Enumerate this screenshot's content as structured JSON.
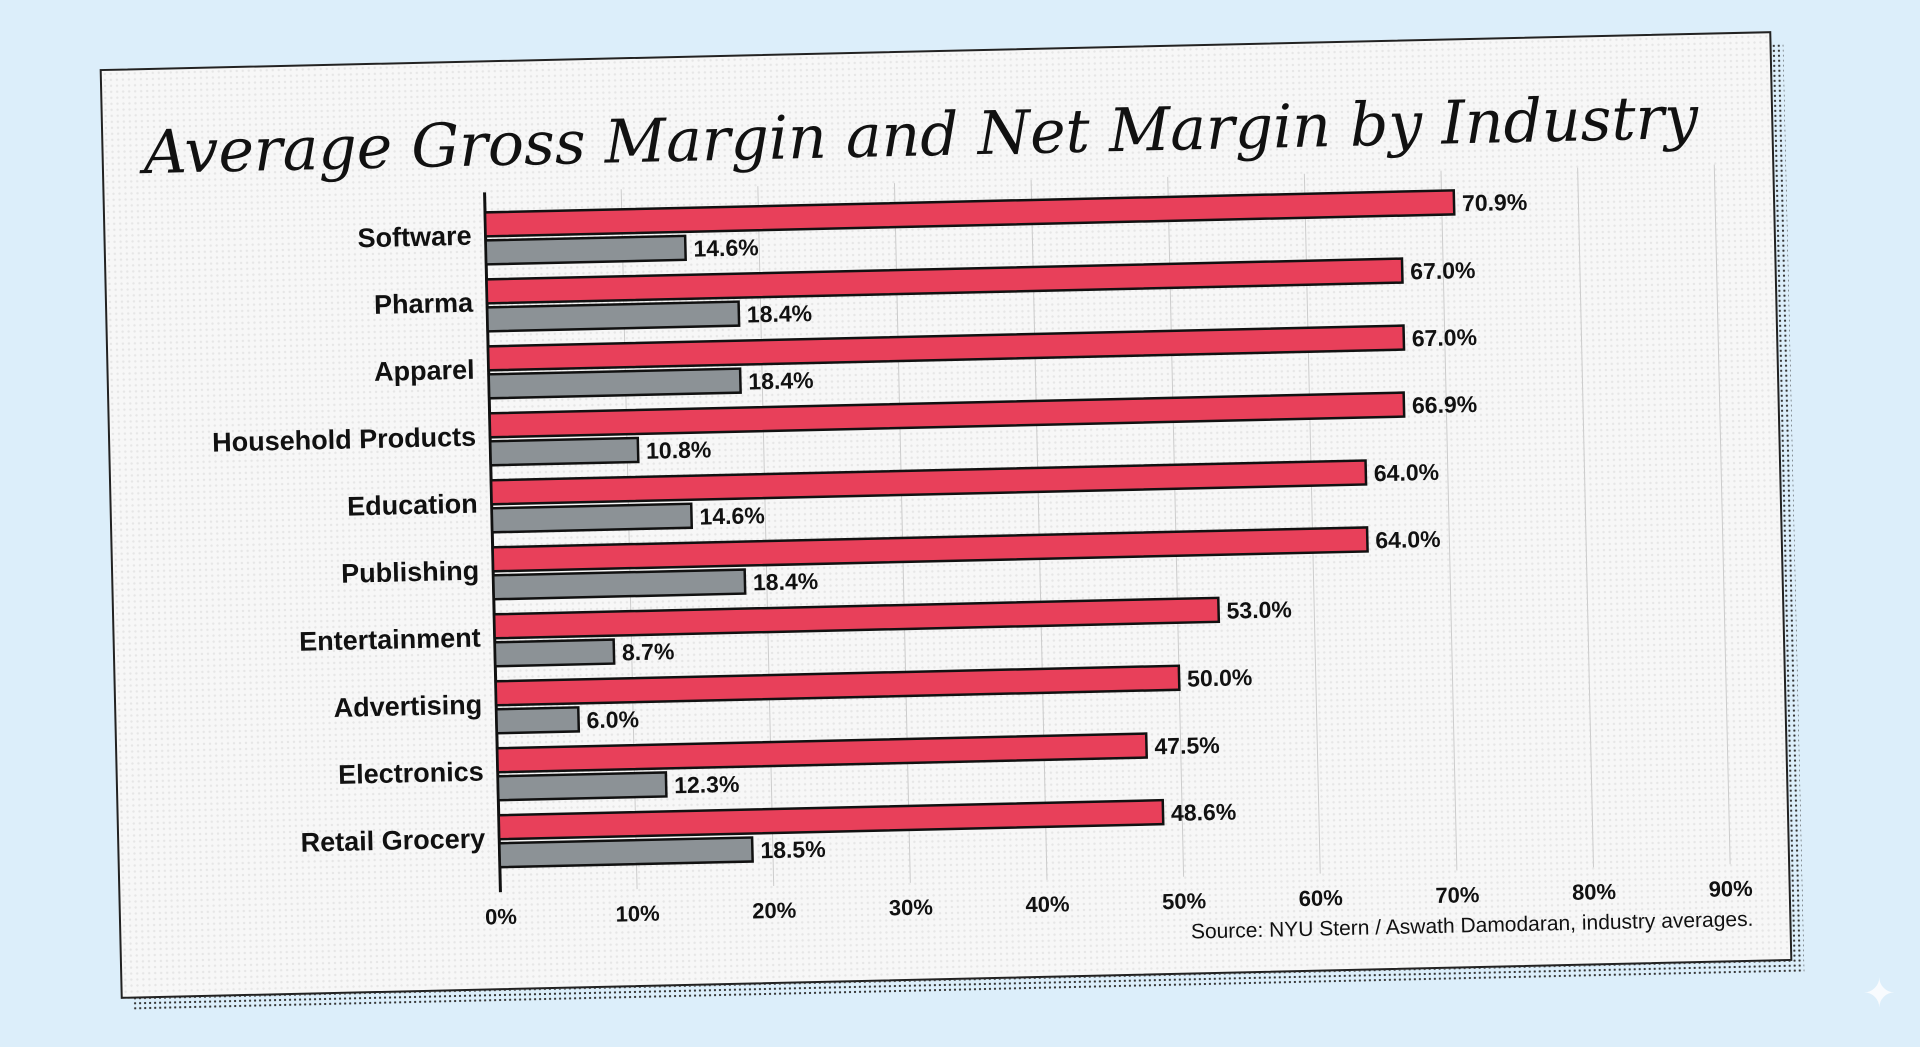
{
  "chart_data": {
    "type": "bar",
    "orientation": "horizontal",
    "title": "Average Gross Margin and Net Margin by Industry",
    "categories": [
      "Software",
      "Pharma",
      "Apparel",
      "Household Products",
      "Education",
      "Publishing",
      "Entertainment",
      "Advertising",
      "Electronics",
      "Retail Grocery"
    ],
    "series": [
      {
        "key": "gross",
        "values": [
          70.9,
          67.0,
          67.0,
          66.9,
          64.0,
          64.0,
          53.0,
          50.0,
          47.5,
          48.6
        ],
        "labels": [
          "70.9%",
          "67.0%",
          "67.0%",
          "66.9%",
          "64.0%",
          "64.0%",
          "53.0%",
          "50.0%",
          "47.5%",
          "48.6%"
        ],
        "color": "#e8405a"
      },
      {
        "key": "net",
        "values": [
          14.6,
          18.4,
          18.4,
          10.8,
          14.6,
          18.4,
          8.7,
          6.0,
          12.3,
          18.5
        ],
        "labels": [
          "14.6%",
          "18.4%",
          "18.4%",
          "10.8%",
          "14.6%",
          "18.4%",
          "8.7%",
          "6.0%",
          "12.3%",
          "18.5%"
        ],
        "color": "#8c9296"
      }
    ],
    "xlim": [
      0,
      90
    ],
    "xticks": [
      "0%",
      "10%",
      "20%",
      "30%",
      "40%",
      "50%",
      "60%",
      "70%",
      "80%",
      "90%"
    ],
    "grid": true,
    "legend": "none",
    "source": "Source: NYU Stern / Aswath Damodaran, industry averages."
  }
}
